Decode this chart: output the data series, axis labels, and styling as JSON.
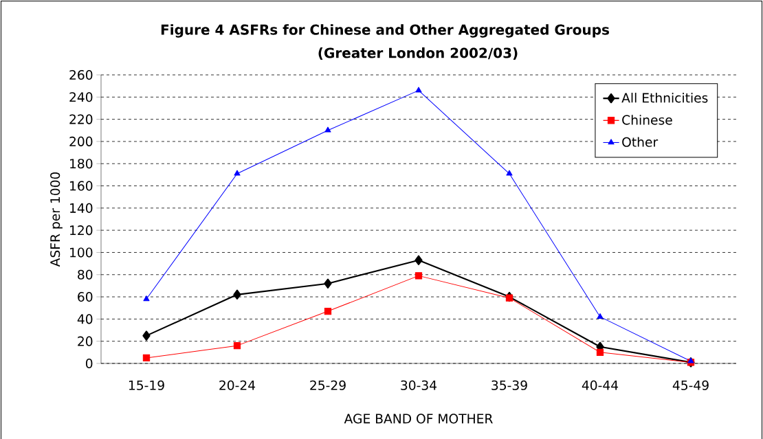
{
  "chart_data": {
    "type": "line",
    "title": "Figure 4 ASFRs for Chinese and Other Aggregated Groups",
    "subtitle": "(Greater London 2002/03)",
    "xlabel": "AGE BAND OF MOTHER",
    "ylabel": "ASFR per 1000",
    "categories": [
      "15-19",
      "20-24",
      "25-29",
      "30-34",
      "35-39",
      "40-44",
      "45-49"
    ],
    "series": [
      {
        "name": "All Ethnicities",
        "color": "#000000",
        "marker": "diamond",
        "values": [
          25,
          62,
          72,
          93,
          60,
          15,
          1
        ]
      },
      {
        "name": "Chinese",
        "color": "#ff0000",
        "marker": "square",
        "values": [
          5,
          16,
          47,
          79,
          59,
          10,
          1
        ]
      },
      {
        "name": "Other",
        "color": "#0000ff",
        "marker": "triangle",
        "values": [
          58,
          171,
          210,
          246,
          171,
          42,
          2
        ]
      }
    ],
    "ylim": [
      0,
      260
    ],
    "yticks": [
      0,
      20,
      40,
      60,
      80,
      100,
      120,
      140,
      160,
      180,
      200,
      220,
      240,
      260
    ],
    "grid": "y",
    "legend": "top right",
    "line_style": "solid"
  }
}
